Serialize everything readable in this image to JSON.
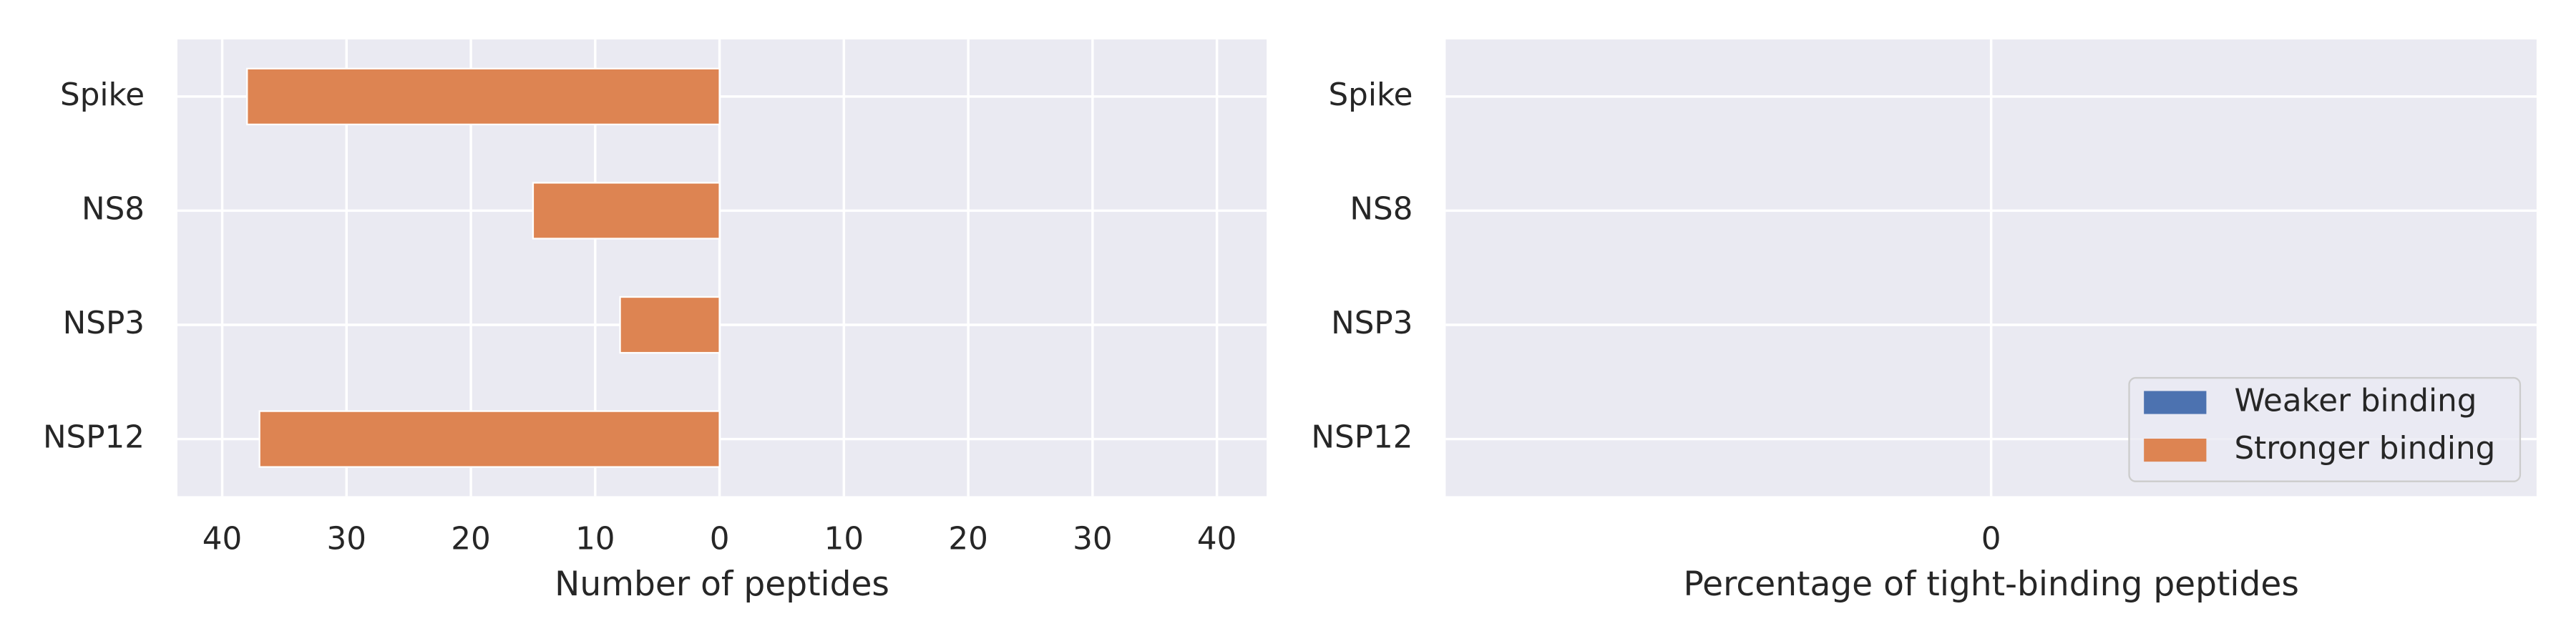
{
  "chart_data": [
    {
      "type": "barh",
      "xlabel": "Number of peptides",
      "categories": [
        "Spike",
        "NS8",
        "NSP3",
        "NSP12"
      ],
      "series": [
        {
          "name": "Weaker binding",
          "color": "#4c72b0",
          "values": [
            0,
            0,
            0,
            0
          ]
        },
        {
          "name": "Stronger binding",
          "color": "#dd8452",
          "values": [
            -38,
            -15,
            -8,
            -37
          ]
        }
      ],
      "xlim": [
        -43.6,
        44
      ],
      "xticks": [
        {
          "value": -40,
          "label": "40"
        },
        {
          "value": -30,
          "label": "30"
        },
        {
          "value": -20,
          "label": "20"
        },
        {
          "value": -10,
          "label": "10"
        },
        0,
        10,
        20,
        30,
        40
      ],
      "grid": true
    },
    {
      "type": "barh",
      "xlabel": "Percentage of tight-binding peptides",
      "categories": [
        "Spike",
        "NS8",
        "NSP3",
        "NSP12"
      ],
      "series": [
        {
          "name": "Weaker binding",
          "color": "#4c72b0",
          "values": [
            0,
            0,
            0,
            0
          ]
        },
        {
          "name": "Stronger binding",
          "color": "#dd8452",
          "values": [
            0,
            0,
            0,
            0
          ]
        }
      ],
      "xlim": [
        -0.055,
        0.055
      ],
      "xticks": [
        0
      ],
      "grid": true,
      "legend": "lower right"
    }
  ]
}
